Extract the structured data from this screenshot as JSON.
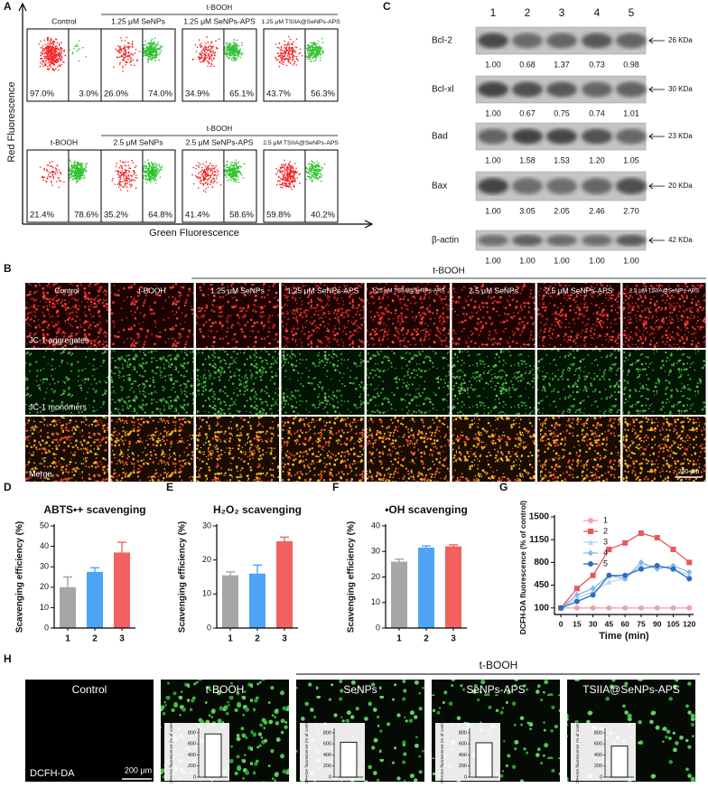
{
  "panel_labels": [
    "A",
    "B",
    "C",
    "D",
    "E",
    "F",
    "G",
    "H"
  ],
  "flow": {
    "group_label": "t-BOOH",
    "y_label": "Red Fluorescence",
    "x_label": "Green Fluorescence",
    "plots": [
      {
        "title": "Control",
        "left": "97.0%",
        "right": "3.0%"
      },
      {
        "title": "1.25 μM SeNPs",
        "left": "26.0%",
        "right": "74.0%"
      },
      {
        "title": "1.25 μM SeNPs-APS",
        "left": "34.9%",
        "right": "65.1%"
      },
      {
        "title": "1.25 μM TSIIA@SeNPs-APS",
        "left": "43.7%",
        "right": "56.3%"
      },
      {
        "title": "t-BOOH",
        "left": "21.4%",
        "right": "78.6%"
      },
      {
        "title": "2.5 μM SeNPs",
        "left": "35.2%",
        "right": "64.8%"
      },
      {
        "title": "2.5 μM SeNPs-APS",
        "left": "41.4%",
        "right": "58.6%"
      },
      {
        "title": "2.5 μM TSIIA@SeNPs-APS",
        "left": "59.8%",
        "right": "40.2%"
      }
    ]
  },
  "western": {
    "lanes": [
      "1",
      "2",
      "3",
      "4",
      "5"
    ],
    "bands": [
      {
        "name": "Bcl-2",
        "size": "26 KDa",
        "values": [
          "1.00",
          "0.68",
          "1.37",
          "0.73",
          "0.98"
        ]
      },
      {
        "name": "Bcl-xl",
        "size": "30 KDa",
        "values": [
          "1.00",
          "0.67",
          "0.75",
          "0.74",
          "1.01"
        ]
      },
      {
        "name": "Bad",
        "size": "23 KDa",
        "values": [
          "1.00",
          "1.58",
          "1.53",
          "1.20",
          "1.05"
        ]
      },
      {
        "name": "Bax",
        "size": "20 KDa",
        "values": [
          "1.00",
          "3.05",
          "2.05",
          "2.46",
          "2.70"
        ]
      },
      {
        "name": "β-actin",
        "size": "42 KDa",
        "values": [
          "1.00",
          "1.00",
          "1.00",
          "1.00",
          "1.00"
        ]
      }
    ]
  },
  "jc1": {
    "group_label": "t-BOOH",
    "columns": [
      "Control",
      "t-BOOH",
      "1.25 μM SeNPs",
      "1.25 μM SeNPs-APS",
      "1.25 μM TSIIA@SeNPs-APS",
      "2.5 μM SeNPs",
      "2.5 μM SeNPs-APS",
      "2.5 μM TSIIA@SeNPs-APS"
    ],
    "rows": [
      "JC-1 aggregates",
      "JC-1 monomers",
      "Merge"
    ],
    "scale": "200 μm"
  },
  "chart_data": [
    {
      "type": "bar",
      "title": "ABTS•+ scavenging",
      "y_label": "Scavenging efficiency (%)",
      "categories": [
        "1",
        "2",
        "3"
      ],
      "values": [
        20,
        27.5,
        37
      ],
      "errors": [
        5,
        2,
        5
      ],
      "colors": [
        "#a6a6a6",
        "#4da3f5",
        "#f2615f"
      ],
      "ylim": [
        0,
        50
      ],
      "yticks": [
        0,
        10,
        20,
        30,
        40,
        50
      ]
    },
    {
      "type": "bar",
      "title": "H₂O₂ scavenging",
      "y_label": "Scavenging efficiency (%)",
      "categories": [
        "1",
        "2",
        "3"
      ],
      "values": [
        15.5,
        16,
        25.5
      ],
      "errors": [
        1,
        2.5,
        1.2
      ],
      "colors": [
        "#a6a6a6",
        "#4da3f5",
        "#f2615f"
      ],
      "ylim": [
        0,
        30
      ],
      "yticks": [
        0,
        10,
        20,
        30
      ]
    },
    {
      "type": "bar",
      "title": "•OH scavenging",
      "y_label": "Scavenging efficiency (%)",
      "categories": [
        "1",
        "2",
        "3"
      ],
      "values": [
        26,
        31.5,
        32
      ],
      "errors": [
        1,
        0.7,
        0.6
      ],
      "colors": [
        "#a6a6a6",
        "#4da3f5",
        "#f2615f"
      ],
      "ylim": [
        0,
        40
      ],
      "yticks": [
        0,
        10,
        20,
        30,
        40
      ]
    },
    {
      "type": "line",
      "x_label": "Time (min)",
      "y_label": "DCFH-DA fluorescence (% of control)",
      "x": [
        0,
        15,
        30,
        45,
        60,
        75,
        90,
        105,
        120
      ],
      "xlim": [
        -6,
        124
      ],
      "xticks": [
        0,
        15,
        30,
        45,
        60,
        75,
        90,
        105,
        120
      ],
      "ylim": [
        0,
        1500
      ],
      "yticks": [
        100,
        450,
        800,
        1150,
        1500
      ],
      "legend": "upper left",
      "series": [
        {
          "name": "1",
          "color": "#f2a0a8",
          "marker": "circle",
          "values": [
            100,
            100,
            100,
            100,
            100,
            100,
            100,
            100,
            100
          ]
        },
        {
          "name": "2",
          "color": "#e8575a",
          "marker": "square",
          "values": [
            100,
            400,
            600,
            1000,
            1100,
            1250,
            1180,
            1000,
            800
          ]
        },
        {
          "name": "3",
          "color": "#b7d7f2",
          "marker": "triangle",
          "values": [
            100,
            250,
            350,
            500,
            550,
            750,
            750,
            700,
            600
          ]
        },
        {
          "name": "4",
          "color": "#82b8e8",
          "marker": "diamond",
          "values": [
            100,
            300,
            400,
            600,
            550,
            800,
            700,
            750,
            650
          ]
        },
        {
          "name": "5",
          "color": "#2d6cc0",
          "marker": "circle",
          "values": [
            100,
            200,
            300,
            600,
            600,
            700,
            750,
            700,
            550
          ]
        }
      ]
    }
  ],
  "dcfh": {
    "group_label": "t-BOOH",
    "columns": [
      "Control",
      "t-BOOH",
      "SeNPs",
      "SeNPs-APS",
      "TSIIA@SeNPs-APS"
    ],
    "stain": "DCFH-DA",
    "scale": "200 μm",
    "inset": {
      "type": "bar",
      "y_label": "DCFH-DA fluorescence (% of control)",
      "values": [
        780,
        630,
        620,
        560
      ],
      "ylim": [
        0,
        880
      ],
      "yticks": [
        0,
        200,
        400,
        600,
        800
      ],
      "color": "#ffffff"
    }
  }
}
